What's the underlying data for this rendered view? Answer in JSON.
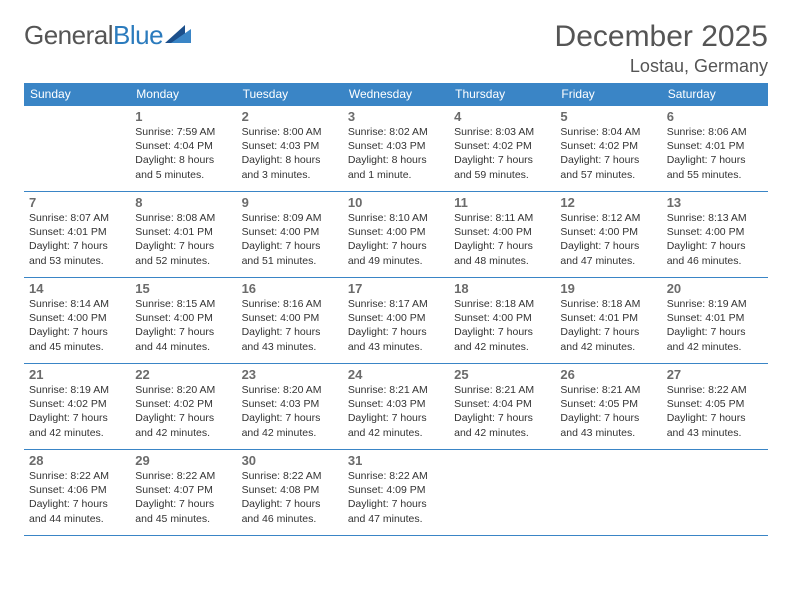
{
  "logo": {
    "text_gray": "General",
    "text_blue": "Blue"
  },
  "title": "December 2025",
  "location": "Lostau, Germany",
  "header_bg": "#3a85c6",
  "header_text_color": "#ffffff",
  "border_color": "#3a85c6",
  "text_color": "#333333",
  "daynum_color": "#6b6b6b",
  "background_color": "#ffffff",
  "dayname_fontsize": 12,
  "info_fontsize": 10.5,
  "day_names": [
    "Sunday",
    "Monday",
    "Tuesday",
    "Wednesday",
    "Thursday",
    "Friday",
    "Saturday"
  ],
  "weeks": [
    [
      null,
      {
        "n": "1",
        "sr": "Sunrise: 7:59 AM",
        "ss": "Sunset: 4:04 PM",
        "d1": "Daylight: 8 hours",
        "d2": "and 5 minutes."
      },
      {
        "n": "2",
        "sr": "Sunrise: 8:00 AM",
        "ss": "Sunset: 4:03 PM",
        "d1": "Daylight: 8 hours",
        "d2": "and 3 minutes."
      },
      {
        "n": "3",
        "sr": "Sunrise: 8:02 AM",
        "ss": "Sunset: 4:03 PM",
        "d1": "Daylight: 8 hours",
        "d2": "and 1 minute."
      },
      {
        "n": "4",
        "sr": "Sunrise: 8:03 AM",
        "ss": "Sunset: 4:02 PM",
        "d1": "Daylight: 7 hours",
        "d2": "and 59 minutes."
      },
      {
        "n": "5",
        "sr": "Sunrise: 8:04 AM",
        "ss": "Sunset: 4:02 PM",
        "d1": "Daylight: 7 hours",
        "d2": "and 57 minutes."
      },
      {
        "n": "6",
        "sr": "Sunrise: 8:06 AM",
        "ss": "Sunset: 4:01 PM",
        "d1": "Daylight: 7 hours",
        "d2": "and 55 minutes."
      }
    ],
    [
      {
        "n": "7",
        "sr": "Sunrise: 8:07 AM",
        "ss": "Sunset: 4:01 PM",
        "d1": "Daylight: 7 hours",
        "d2": "and 53 minutes."
      },
      {
        "n": "8",
        "sr": "Sunrise: 8:08 AM",
        "ss": "Sunset: 4:01 PM",
        "d1": "Daylight: 7 hours",
        "d2": "and 52 minutes."
      },
      {
        "n": "9",
        "sr": "Sunrise: 8:09 AM",
        "ss": "Sunset: 4:00 PM",
        "d1": "Daylight: 7 hours",
        "d2": "and 51 minutes."
      },
      {
        "n": "10",
        "sr": "Sunrise: 8:10 AM",
        "ss": "Sunset: 4:00 PM",
        "d1": "Daylight: 7 hours",
        "d2": "and 49 minutes."
      },
      {
        "n": "11",
        "sr": "Sunrise: 8:11 AM",
        "ss": "Sunset: 4:00 PM",
        "d1": "Daylight: 7 hours",
        "d2": "and 48 minutes."
      },
      {
        "n": "12",
        "sr": "Sunrise: 8:12 AM",
        "ss": "Sunset: 4:00 PM",
        "d1": "Daylight: 7 hours",
        "d2": "and 47 minutes."
      },
      {
        "n": "13",
        "sr": "Sunrise: 8:13 AM",
        "ss": "Sunset: 4:00 PM",
        "d1": "Daylight: 7 hours",
        "d2": "and 46 minutes."
      }
    ],
    [
      {
        "n": "14",
        "sr": "Sunrise: 8:14 AM",
        "ss": "Sunset: 4:00 PM",
        "d1": "Daylight: 7 hours",
        "d2": "and 45 minutes."
      },
      {
        "n": "15",
        "sr": "Sunrise: 8:15 AM",
        "ss": "Sunset: 4:00 PM",
        "d1": "Daylight: 7 hours",
        "d2": "and 44 minutes."
      },
      {
        "n": "16",
        "sr": "Sunrise: 8:16 AM",
        "ss": "Sunset: 4:00 PM",
        "d1": "Daylight: 7 hours",
        "d2": "and 43 minutes."
      },
      {
        "n": "17",
        "sr": "Sunrise: 8:17 AM",
        "ss": "Sunset: 4:00 PM",
        "d1": "Daylight: 7 hours",
        "d2": "and 43 minutes."
      },
      {
        "n": "18",
        "sr": "Sunrise: 8:18 AM",
        "ss": "Sunset: 4:00 PM",
        "d1": "Daylight: 7 hours",
        "d2": "and 42 minutes."
      },
      {
        "n": "19",
        "sr": "Sunrise: 8:18 AM",
        "ss": "Sunset: 4:01 PM",
        "d1": "Daylight: 7 hours",
        "d2": "and 42 minutes."
      },
      {
        "n": "20",
        "sr": "Sunrise: 8:19 AM",
        "ss": "Sunset: 4:01 PM",
        "d1": "Daylight: 7 hours",
        "d2": "and 42 minutes."
      }
    ],
    [
      {
        "n": "21",
        "sr": "Sunrise: 8:19 AM",
        "ss": "Sunset: 4:02 PM",
        "d1": "Daylight: 7 hours",
        "d2": "and 42 minutes."
      },
      {
        "n": "22",
        "sr": "Sunrise: 8:20 AM",
        "ss": "Sunset: 4:02 PM",
        "d1": "Daylight: 7 hours",
        "d2": "and 42 minutes."
      },
      {
        "n": "23",
        "sr": "Sunrise: 8:20 AM",
        "ss": "Sunset: 4:03 PM",
        "d1": "Daylight: 7 hours",
        "d2": "and 42 minutes."
      },
      {
        "n": "24",
        "sr": "Sunrise: 8:21 AM",
        "ss": "Sunset: 4:03 PM",
        "d1": "Daylight: 7 hours",
        "d2": "and 42 minutes."
      },
      {
        "n": "25",
        "sr": "Sunrise: 8:21 AM",
        "ss": "Sunset: 4:04 PM",
        "d1": "Daylight: 7 hours",
        "d2": "and 42 minutes."
      },
      {
        "n": "26",
        "sr": "Sunrise: 8:21 AM",
        "ss": "Sunset: 4:05 PM",
        "d1": "Daylight: 7 hours",
        "d2": "and 43 minutes."
      },
      {
        "n": "27",
        "sr": "Sunrise: 8:22 AM",
        "ss": "Sunset: 4:05 PM",
        "d1": "Daylight: 7 hours",
        "d2": "and 43 minutes."
      }
    ],
    [
      {
        "n": "28",
        "sr": "Sunrise: 8:22 AM",
        "ss": "Sunset: 4:06 PM",
        "d1": "Daylight: 7 hours",
        "d2": "and 44 minutes."
      },
      {
        "n": "29",
        "sr": "Sunrise: 8:22 AM",
        "ss": "Sunset: 4:07 PM",
        "d1": "Daylight: 7 hours",
        "d2": "and 45 minutes."
      },
      {
        "n": "30",
        "sr": "Sunrise: 8:22 AM",
        "ss": "Sunset: 4:08 PM",
        "d1": "Daylight: 7 hours",
        "d2": "and 46 minutes."
      },
      {
        "n": "31",
        "sr": "Sunrise: 8:22 AM",
        "ss": "Sunset: 4:09 PM",
        "d1": "Daylight: 7 hours",
        "d2": "and 47 minutes."
      },
      null,
      null,
      null
    ]
  ]
}
